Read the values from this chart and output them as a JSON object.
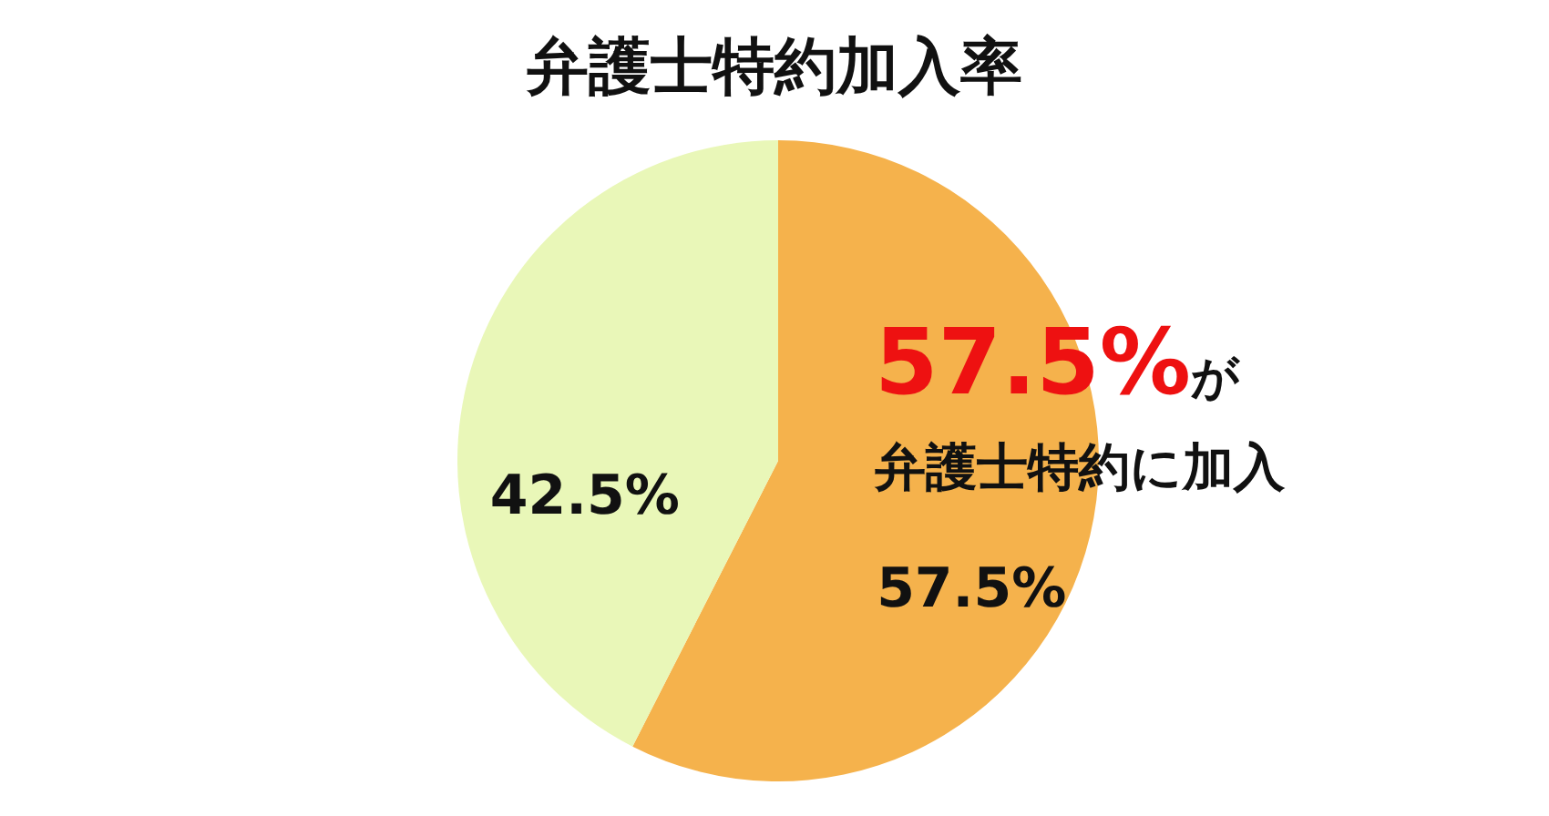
{
  "chart_data": {
    "type": "pie",
    "title": "弁護士特約加入率",
    "categories": [
      null,
      null
    ],
    "values": [
      57.5,
      42.5
    ],
    "colors": [
      "#f5b24c",
      "#e9f7b8"
    ],
    "value_labels": [
      "57.5%",
      "42.5%"
    ],
    "annotations": [
      "57.5%が",
      "弁護士特約に加入"
    ],
    "legend": false
  }
}
